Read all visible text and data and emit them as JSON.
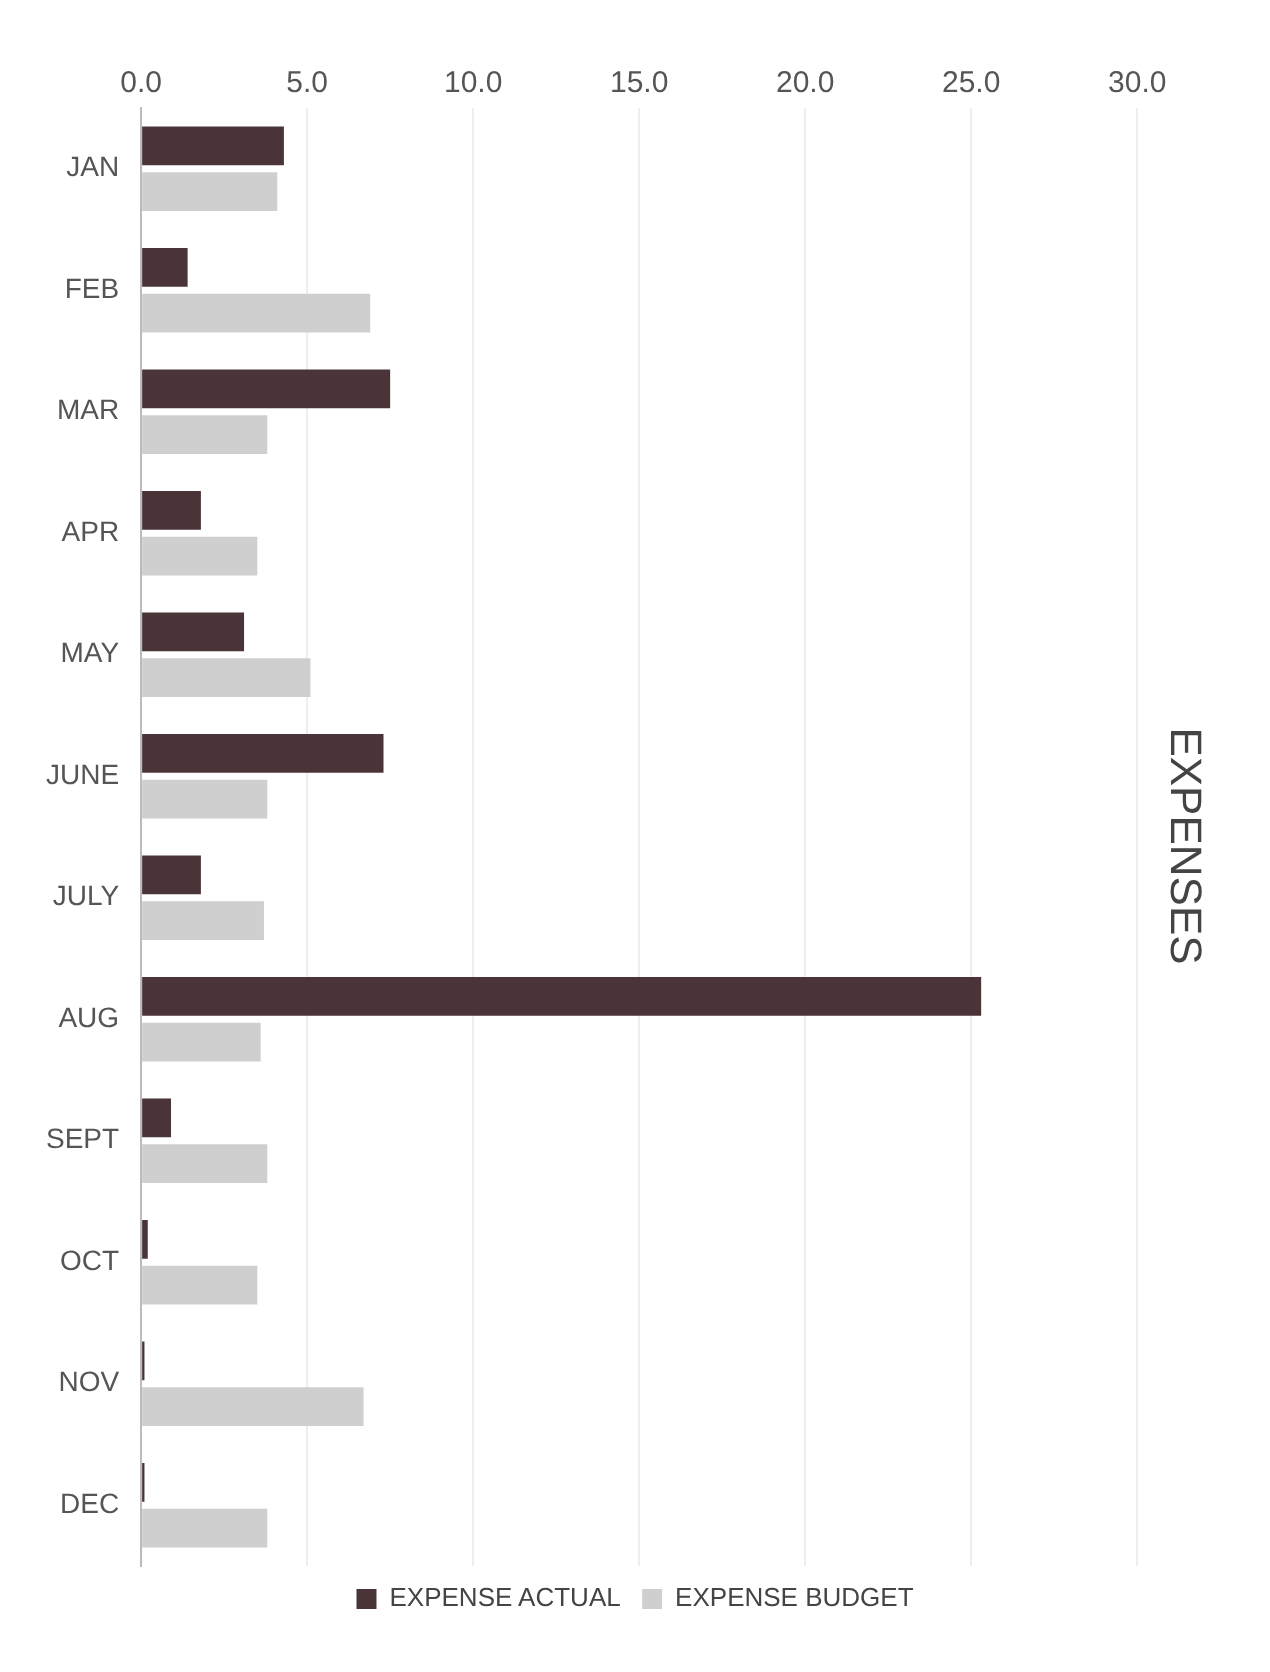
{
  "chart_data": {
    "type": "bar",
    "title": "EXPENSES",
    "orientation": "horizontal",
    "categories": [
      "JAN",
      "FEB",
      "MAR",
      "APR",
      "MAY",
      "JUNE",
      "JULY",
      "AUG",
      "SEPT",
      "OCT",
      "NOV",
      "DEC"
    ],
    "series": [
      {
        "name": "EXPENSE ACTUAL",
        "color": "#4a3438",
        "values": [
          4.3,
          1.4,
          7.5,
          1.8,
          3.1,
          7.3,
          1.8,
          25.3,
          0.9,
          0.2,
          0.1,
          0.1
        ]
      },
      {
        "name": "EXPENSE BUDGET",
        "color": "#cfcfcf",
        "values": [
          4.1,
          6.9,
          3.8,
          3.5,
          5.1,
          3.8,
          3.7,
          3.6,
          3.8,
          3.5,
          6.7,
          3.8
        ]
      }
    ],
    "xlim": [
      0,
      30
    ],
    "xticks": [
      {
        "value": 0,
        "label": "0.0"
      },
      {
        "value": 5,
        "label": "5.0"
      },
      {
        "value": 10,
        "label": "10.0"
      },
      {
        "value": 15,
        "label": "15.0"
      },
      {
        "value": 20,
        "label": "20.0"
      },
      {
        "value": 25,
        "label": "25.0"
      },
      {
        "value": 30,
        "label": "30.0"
      }
    ],
    "grid": "x",
    "legend": "bottom"
  }
}
